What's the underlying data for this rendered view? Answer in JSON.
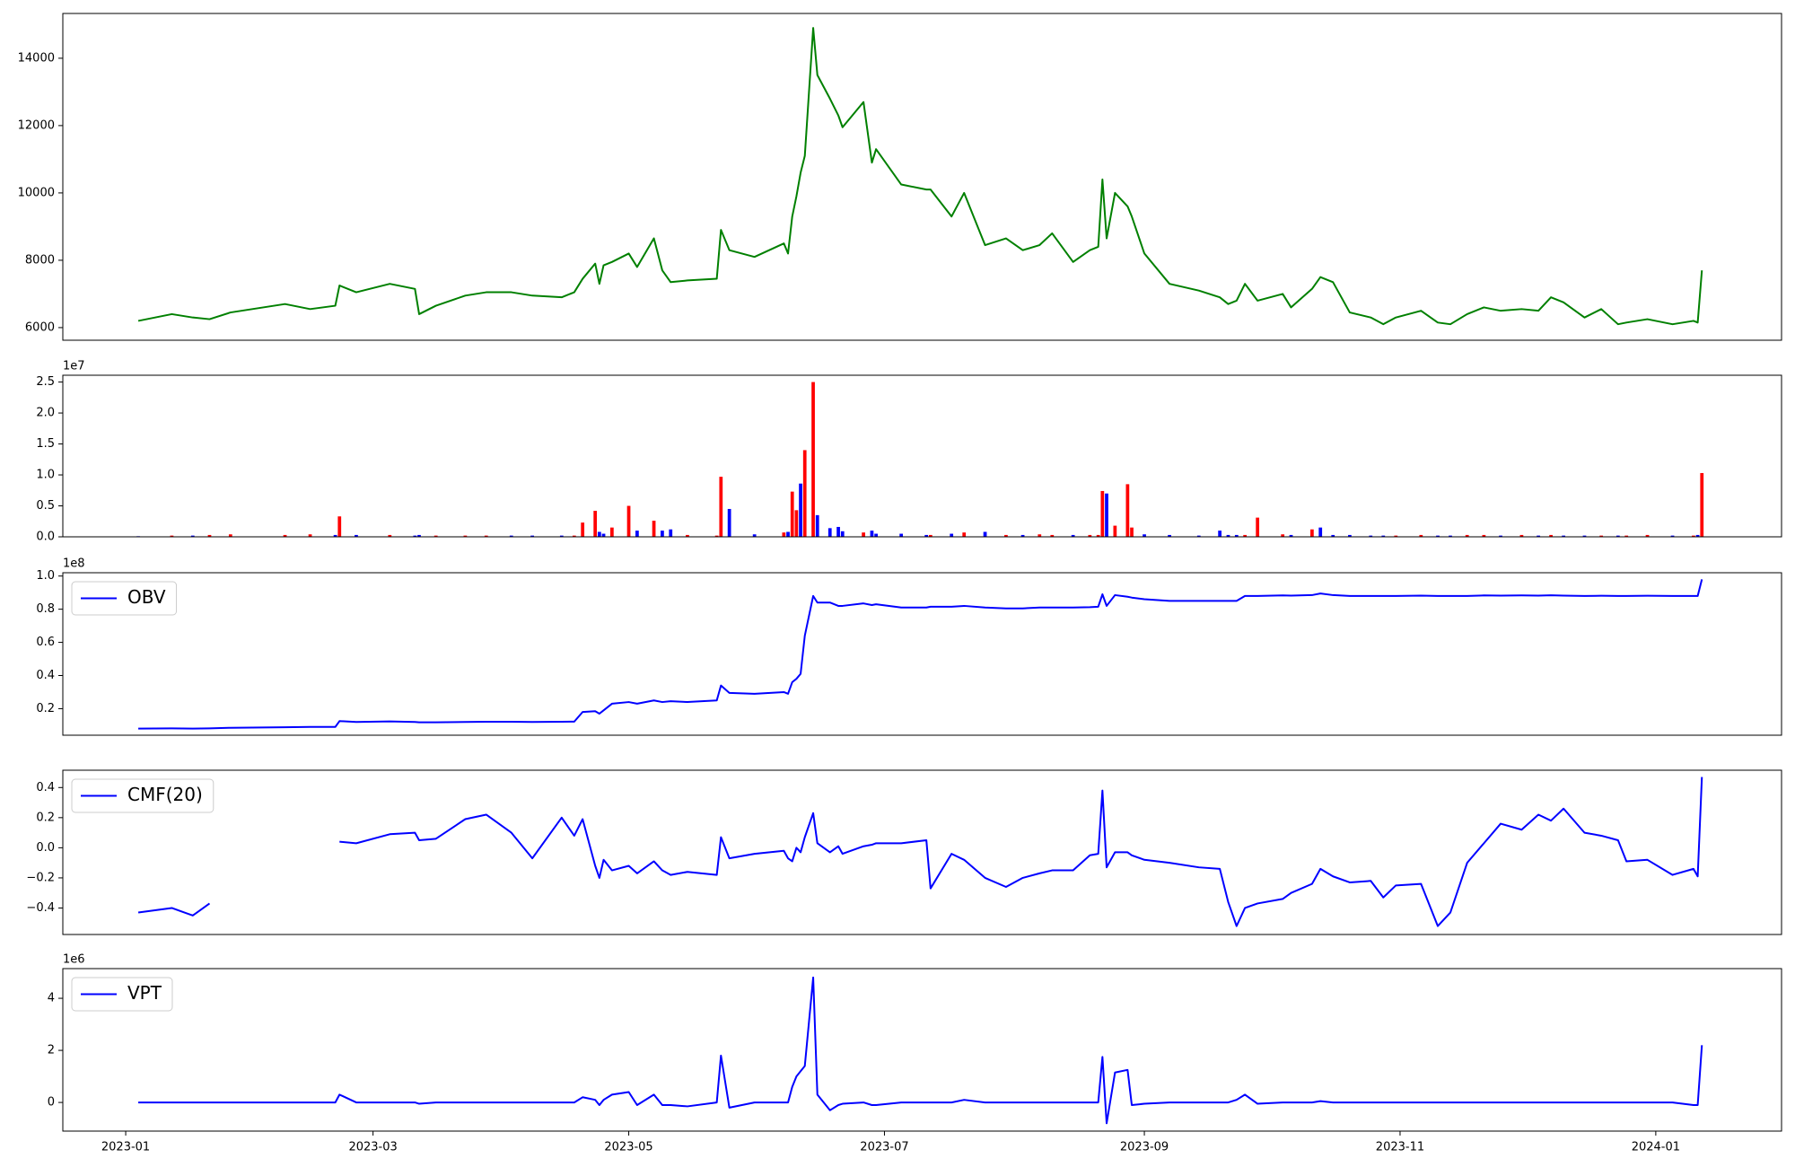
{
  "chart_data": {
    "type": "panels",
    "x": [
      "2023-01-04",
      "2023-01-12",
      "2023-01-17",
      "2023-01-21",
      "2023-01-26",
      "2023-02-08",
      "2023-02-14",
      "2023-02-20",
      "2023-02-21",
      "2023-02-25",
      "2023-03-05",
      "2023-03-11",
      "2023-03-12",
      "2023-03-16",
      "2023-03-23",
      "2023-03-28",
      "2023-04-03",
      "2023-04-08",
      "2023-04-15",
      "2023-04-18",
      "2023-04-20",
      "2023-04-23",
      "2023-04-24",
      "2023-04-25",
      "2023-04-27",
      "2023-05-01",
      "2023-05-03",
      "2023-05-07",
      "2023-05-09",
      "2023-05-11",
      "2023-05-15",
      "2023-05-22",
      "2023-05-23",
      "2023-05-25",
      "2023-05-31",
      "2023-06-07",
      "2023-06-08",
      "2023-06-09",
      "2023-06-10",
      "2023-06-11",
      "2023-06-12",
      "2023-06-14",
      "2023-06-15",
      "2023-06-18",
      "2023-06-20",
      "2023-06-21",
      "2023-06-26",
      "2023-06-28",
      "2023-06-29",
      "2023-07-05",
      "2023-07-11",
      "2023-07-12",
      "2023-07-17",
      "2023-07-20",
      "2023-07-25",
      "2023-07-30",
      "2023-08-03",
      "2023-08-07",
      "2023-08-10",
      "2023-08-15",
      "2023-08-19",
      "2023-08-21",
      "2023-08-22",
      "2023-08-23",
      "2023-08-25",
      "2023-08-28",
      "2023-08-29",
      "2023-09-01",
      "2023-09-07",
      "2023-09-14",
      "2023-09-19",
      "2023-09-21",
      "2023-09-23",
      "2023-09-25",
      "2023-09-28",
      "2023-10-04",
      "2023-10-06",
      "2023-10-11",
      "2023-10-13",
      "2023-10-16",
      "2023-10-20",
      "2023-10-25",
      "2023-10-28",
      "2023-10-31",
      "2023-11-06",
      "2023-11-10",
      "2023-11-13",
      "2023-11-17",
      "2023-11-21",
      "2023-11-25",
      "2023-11-30",
      "2023-12-04",
      "2023-12-07",
      "2023-12-10",
      "2023-12-15",
      "2023-12-19",
      "2023-12-23",
      "2023-12-25",
      "2023-12-30",
      "2024-01-05",
      "2024-01-10",
      "2024-01-11",
      "2024-01-12"
    ],
    "xlim": [
      "2022-12-17",
      "2024-01-31"
    ],
    "xticks": [
      {
        "value": "2023-01-01",
        "label": "2023-01"
      },
      {
        "value": "2023-03-01",
        "label": "2023-03"
      },
      {
        "value": "2023-05-01",
        "label": "2023-05"
      },
      {
        "value": "2023-07-01",
        "label": "2023-07"
      },
      {
        "value": "2023-09-01",
        "label": "2023-09"
      },
      {
        "value": "2023-11-01",
        "label": "2023-11"
      },
      {
        "value": "2024-01-01",
        "label": "2024-01"
      }
    ],
    "panels": [
      {
        "type": "line",
        "ylim": [
          5625,
          15330
        ],
        "yticks": [
          6000,
          8000,
          10000,
          12000,
          14000
        ],
        "series": [
          {
            "color": "green",
            "values": [
              6200,
              6400,
              6300,
              6250,
              6450,
              6700,
              6550,
              6650,
              7250,
              7050,
              7300,
              7150,
              6400,
              6650,
              6950,
              7050,
              7050,
              6950,
              6900,
              7050,
              7450,
              7900,
              7300,
              7850,
              7950,
              8200,
              7800,
              8650,
              7700,
              7350,
              7400,
              7450,
              8900,
              8300,
              8100,
              8500,
              8200,
              9300,
              9900,
              10600,
              11100,
              14900,
              13500,
              12800,
              12300,
              11950,
              12700,
              10900,
              11300,
              10250,
              10100,
              10100,
              9300,
              10000,
              8450,
              8650,
              8300,
              8450,
              8800,
              7950,
              8300,
              8400,
              10400,
              8650,
              10000,
              9600,
              9300,
              8200,
              7300,
              7100,
              6900,
              6700,
              6800,
              7300,
              6800,
              7000,
              6600,
              7150,
              7500,
              7350,
              6450,
              6300,
              6100,
              6300,
              6500,
              6150,
              6100,
              6400,
              6600,
              6500,
              6550,
              6500,
              6900,
              6750,
              6300,
              6550,
              6100,
              6150,
              6250,
              6100,
              6200,
              6150,
              7700
            ]
          }
        ]
      },
      {
        "type": "bar",
        "offset_label": "1e7",
        "ylim": [
          0,
          26100000.0
        ],
        "yticks": [
          {
            "value": 0,
            "label": "0.0"
          },
          {
            "value": 5000000.0,
            "label": "0.5"
          },
          {
            "value": 10000000.0,
            "label": "1.0"
          },
          {
            "value": 15000000.0,
            "label": "1.5"
          },
          {
            "value": 20000000.0,
            "label": "2.0"
          },
          {
            "value": 25000000.0,
            "label": "2.5"
          }
        ],
        "series": [
          {
            "values": [
              100000.0,
              200000.0,
              200000.0,
              300000.0,
              400000.0,
              300000.0,
              400000.0,
              300000.0,
              3300000.0,
              300000.0,
              300000.0,
              200000.0,
              300000.0,
              200000.0,
              200000.0,
              200000.0,
              200000.0,
              200000.0,
              200000.0,
              200000.0,
              2300000.0,
              4200000.0,
              800000.0,
              500000.0,
              1500000.0,
              5000000.0,
              1000000.0,
              2600000.0,
              1000000.0,
              1200000.0,
              300000.0,
              200000.0,
              9700000.0,
              4500000.0,
              400000.0,
              700000.0,
              800000.0,
              7300000.0,
              4300000.0,
              8600000.0,
              14000000.0,
              25000000.0,
              3500000.0,
              1400000.0,
              1600000.0,
              900000.0,
              700000.0,
              1000000.0,
              500000.0,
              500000.0,
              300000.0,
              300000.0,
              500000.0,
              700000.0,
              800000.0,
              300000.0,
              300000.0,
              400000.0,
              300000.0,
              300000.0,
              300000.0,
              300000.0,
              7400000.0,
              7000000.0,
              1800000.0,
              8500000.0,
              1500000.0,
              400000.0,
              300000.0,
              200000.0,
              1000000.0,
              300000.0,
              300000.0,
              300000.0,
              3100000.0,
              400000.0,
              300000.0,
              1200000.0,
              1500000.0,
              300000.0,
              300000.0,
              200000.0,
              200000.0,
              200000.0,
              300000.0,
              200000.0,
              200000.0,
              300000.0,
              300000.0,
              200000.0,
              300000.0,
              200000.0,
              300000.0,
              200000.0,
              200000.0,
              200000.0,
              200000.0,
              200000.0,
              300000.0,
              200000.0,
              200000.0,
              300000.0,
              10300000.0
            ],
            "colors": [
              "blue",
              "red",
              "blue",
              "red",
              "red",
              "red",
              "red",
              "blue",
              "red",
              "blue",
              "red",
              "blue",
              "blue",
              "red",
              "red",
              "red",
              "blue",
              "blue",
              "blue",
              "red",
              "red",
              "red",
              "blue",
              "blue",
              "red",
              "red",
              "blue",
              "red",
              "blue",
              "blue",
              "red",
              "red",
              "red",
              "blue",
              "blue",
              "red",
              "blue",
              "red",
              "red",
              "blue",
              "red",
              "red",
              "blue",
              "blue",
              "blue",
              "blue",
              "red",
              "blue",
              "blue",
              "blue",
              "blue",
              "red",
              "blue",
              "red",
              "blue",
              "red",
              "blue",
              "red",
              "red",
              "blue",
              "red",
              "red",
              "red",
              "blue",
              "red",
              "red",
              "red",
              "blue",
              "blue",
              "blue",
              "blue",
              "blue",
              "blue",
              "red",
              "red",
              "red",
              "blue",
              "red",
              "blue",
              "blue",
              "blue",
              "blue",
              "blue",
              "red",
              "red",
              "blue",
              "blue",
              "red",
              "red",
              "blue",
              "red",
              "blue",
              "red",
              "blue",
              "blue",
              "red",
              "blue",
              "red",
              "red",
              "blue",
              "red",
              "blue",
              "red"
            ]
          }
        ]
      },
      {
        "type": "line",
        "offset_label": "1e8",
        "ylim": [
          4000000.0,
          102000000.0
        ],
        "legend": "upper left",
        "yticks": [
          {
            "value": 20000000.0,
            "label": "0.2"
          },
          {
            "value": 40000000.0,
            "label": "0.4"
          },
          {
            "value": 60000000.0,
            "label": "0.6"
          },
          {
            "value": 80000000.0,
            "label": "0.8"
          },
          {
            "value": 100000000.0,
            "label": "1.0"
          }
        ],
        "series": [
          {
            "name": "OBV",
            "color": "blue",
            "values": [
              8000000.0,
              8100000.0,
              8000000.0,
              8100000.0,
              8500000.0,
              8800000.0,
              9000000.0,
              9000000.0,
              12500000.0,
              12000000.0,
              12300000.0,
              12000000.0,
              11800000.0,
              11800000.0,
              12000000.0,
              12100000.0,
              12100000.0,
              12000000.0,
              12100000.0,
              12200000.0,
              18000000.0,
              18500000.0,
              17000000.0,
              19000000.0,
              23000000.0,
              24000000.0,
              23000000.0,
              25000000.0,
              24000000.0,
              24500000.0,
              24000000.0,
              25000000.0,
              34000000.0,
              29500000.0,
              29000000.0,
              30000000.0,
              29000000.0,
              36000000.0,
              38000000.0,
              41000000.0,
              64000000.0,
              88000000.0,
              84000000.0,
              84000000.0,
              82000000.0,
              82000000.0,
              83500000.0,
              82500000.0,
              83000000.0,
              81000000.0,
              81000000.0,
              81500000.0,
              81500000.0,
              82000000.0,
              81000000.0,
              80500000.0,
              80500000.0,
              81000000.0,
              81000000.0,
              81000000.0,
              81200000.0,
              81500000.0,
              89000000.0,
              82000000.0,
              88500000.0,
              87500000.0,
              87000000.0,
              86000000.0,
              85000000.0,
              85000000.0,
              85000000.0,
              85000000.0,
              85000000.0,
              88000000.0,
              88000000.0,
              88300000.0,
              88200000.0,
              88500000.0,
              89500000.0,
              88500000.0,
              88000000.0,
              88000000.0,
              88000000.0,
              88000000.0,
              88200000.0,
              88000000.0,
              88000000.0,
              88000000.0,
              88300000.0,
              88200000.0,
              88300000.0,
              88200000.0,
              88400000.0,
              88200000.0,
              88000000.0,
              88100000.0,
              88000000.0,
              88000000.0,
              88100000.0,
              88000000.0,
              88000000.0,
              88000000.0,
              98000000.0
            ]
          }
        ]
      },
      {
        "type": "line",
        "ylim": [
          -0.576,
          0.515
        ],
        "legend": "upper left",
        "yticks": [
          {
            "value": -0.4,
            "label": "−0.4"
          },
          {
            "value": -0.2,
            "label": "−0.2"
          },
          {
            "value": 0,
            "label": "0.0"
          },
          0.2,
          0.4
        ],
        "series": [
          {
            "name": "CMF(20)",
            "color": "blue",
            "values": [
              -0.43,
              -0.4,
              -0.45,
              -0.37,
              null,
              null,
              null,
              null,
              0.04,
              0.03,
              0.09,
              0.1,
              0.05,
              0.06,
              0.19,
              0.22,
              0.1,
              -0.07,
              0.2,
              0.08,
              0.19,
              -0.12,
              -0.2,
              -0.08,
              -0.15,
              -0.12,
              -0.17,
              -0.09,
              -0.15,
              -0.18,
              -0.16,
              -0.18,
              0.07,
              -0.07,
              -0.04,
              -0.02,
              -0.07,
              -0.09,
              0.0,
              -0.03,
              0.07,
              0.23,
              0.03,
              -0.03,
              0.01,
              -0.04,
              0.01,
              0.02,
              0.03,
              0.03,
              0.05,
              -0.27,
              -0.04,
              -0.08,
              -0.2,
              -0.26,
              -0.2,
              -0.17,
              -0.15,
              -0.15,
              -0.05,
              -0.04,
              0.38,
              -0.13,
              -0.03,
              -0.03,
              -0.05,
              -0.08,
              -0.1,
              -0.13,
              -0.14,
              -0.36,
              -0.52,
              -0.4,
              -0.37,
              -0.34,
              -0.3,
              -0.24,
              -0.14,
              -0.19,
              -0.23,
              -0.22,
              -0.33,
              -0.25,
              -0.24,
              -0.52,
              -0.43,
              -0.1,
              0.03,
              0.16,
              0.12,
              0.22,
              0.18,
              0.26,
              0.1,
              0.08,
              0.05,
              -0.09,
              -0.08,
              -0.18,
              -0.14,
              -0.19,
              0.47
            ]
          }
        ]
      },
      {
        "type": "line",
        "offset_label": "1e6",
        "ylim": [
          -1100000.0,
          5140000.0
        ],
        "legend": "upper left",
        "yticks": [
          {
            "value": 0,
            "label": "0"
          },
          {
            "value": 2000000.0,
            "label": "2"
          },
          {
            "value": 4000000.0,
            "label": "4"
          }
        ],
        "series": [
          {
            "name": "VPT",
            "color": "blue",
            "values": [
              0,
              0,
              0,
              0,
              0,
              0,
              0,
              0,
              300000.0,
              0,
              0,
              0,
              -50000.0,
              0,
              0,
              0,
              0,
              0,
              0,
              0,
              200000.0,
              100000.0,
              -100000.0,
              100000.0,
              300000.0,
              400000.0,
              -100000.0,
              300000.0,
              -100000.0,
              -100000.0,
              -150000.0,
              0,
              1800000.0,
              -200000.0,
              0,
              0,
              0,
              600000.0,
              1000000.0,
              1200000.0,
              1400000.0,
              4800000.0,
              300000.0,
              -300000.0,
              -100000.0,
              -50000.0,
              0,
              -100000.0,
              -100000.0,
              0,
              0,
              0,
              0,
              100000.0,
              0,
              0,
              0,
              0,
              0,
              0,
              0,
              0,
              1750000.0,
              -800000.0,
              1150000.0,
              1250000.0,
              -100000.0,
              -50000.0,
              0,
              0,
              0,
              0,
              100000.0,
              300000.0,
              -50000.0,
              0,
              0,
              0,
              50000.0,
              0,
              0,
              0,
              0,
              0,
              0,
              0,
              0,
              0,
              0,
              0,
              0,
              0,
              0,
              0,
              0,
              0,
              0,
              0,
              0,
              0,
              -100000.0,
              -100000.0,
              2200000.0
            ]
          }
        ]
      }
    ]
  }
}
